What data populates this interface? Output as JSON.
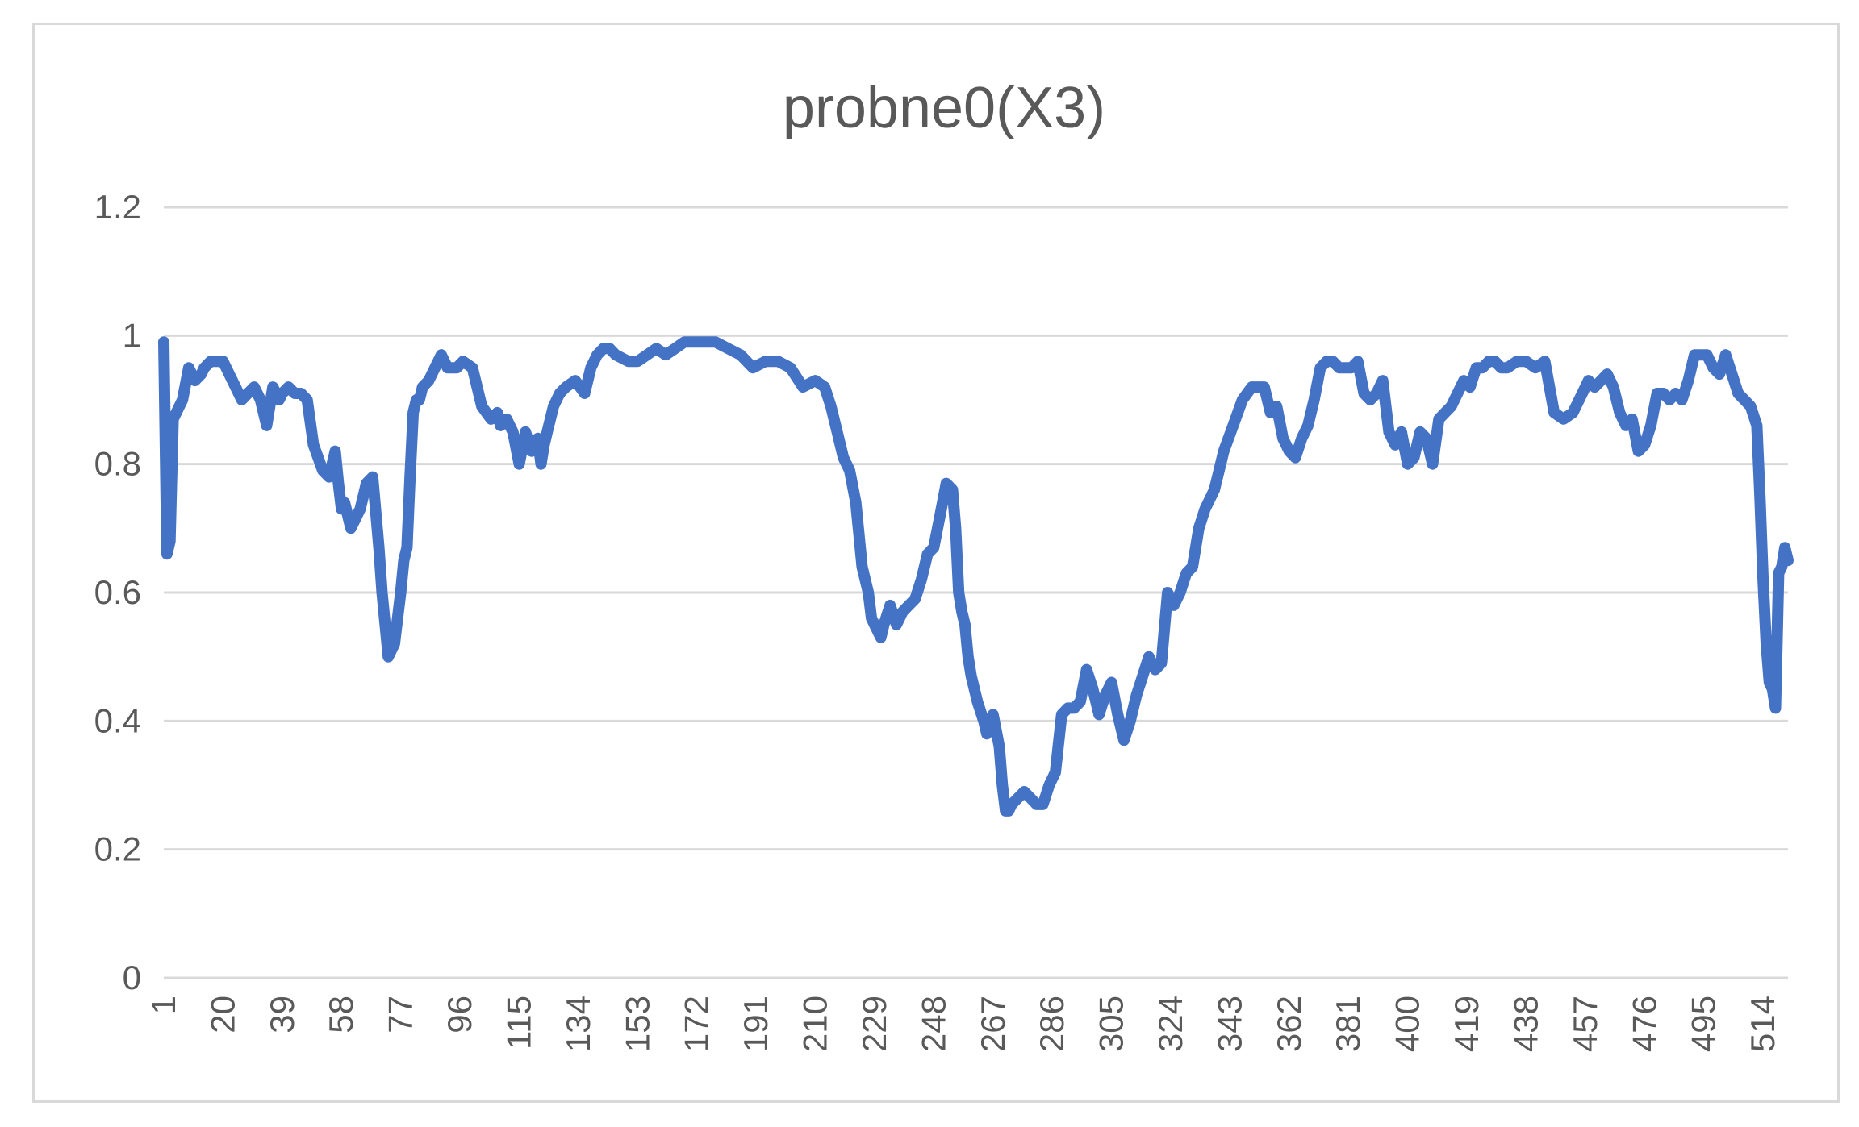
{
  "chart_data": {
    "type": "line",
    "title": "probne0(X3)",
    "xlabel": "",
    "ylabel": "",
    "ylim": [
      0,
      1.2
    ],
    "y_ticks": [
      "0",
      "0.2",
      "0.4",
      "0.6",
      "0.8",
      "1",
      "1.2"
    ],
    "x_tick_labels": [
      "1",
      "20",
      "39",
      "58",
      "77",
      "96",
      "115",
      "134",
      "153",
      "172",
      "191",
      "210",
      "229",
      "248",
      "267",
      "286",
      "305",
      "324",
      "343",
      "362",
      "381",
      "400",
      "419",
      "438",
      "457",
      "476",
      "495",
      "514"
    ],
    "xlim": [
      1,
      522
    ],
    "grid": true,
    "legend": "none",
    "series_color": "#4472c4",
    "series": [
      {
        "x": [
          1,
          2,
          3,
          4,
          5,
          6,
          7,
          9,
          11,
          13,
          14,
          16,
          18,
          20,
          22,
          24,
          26,
          28,
          30,
          32,
          34,
          36,
          38,
          39,
          41,
          43,
          45,
          47,
          49,
          52,
          54,
          56,
          57,
          58,
          59,
          60,
          61,
          62,
          64,
          66,
          68,
          70,
          71,
          73,
          75,
          77,
          78,
          79,
          80,
          81,
          82,
          83,
          84,
          86,
          88,
          89,
          90,
          92,
          95,
          97,
          100,
          103,
          106,
          108,
          109,
          111,
          113,
          115,
          117,
          119,
          121,
          122,
          123,
          124,
          125,
          126,
          128,
          130,
          133,
          136,
          138,
          140,
          142,
          144,
          146,
          150,
          153,
          156,
          159,
          162,
          165,
          168,
          171,
          175,
          178,
          182,
          186,
          190,
          194,
          198,
          202,
          206,
          210,
          213,
          215,
          217,
          219,
          221,
          223,
          225,
          227,
          228,
          229,
          230,
          231,
          232,
          234,
          236,
          238,
          240,
          242,
          244,
          246,
          248,
          250,
          252,
          254,
          255,
          256,
          257,
          258,
          259,
          260,
          262,
          264,
          265,
          267,
          269,
          270,
          271,
          272,
          273,
          275,
          277,
          279,
          281,
          283,
          285,
          287,
          289,
          291,
          293,
          295,
          297,
          299,
          301,
          303,
          305,
          307,
          309,
          311,
          313,
          315,
          317,
          319,
          321,
          323,
          325,
          327,
          329,
          331,
          333,
          335,
          338,
          341,
          344,
          347,
          350,
          352,
          354,
          356,
          358,
          360,
          362,
          364,
          366,
          368,
          370,
          372,
          374,
          376,
          378,
          380,
          382,
          384,
          386,
          388,
          390,
          392,
          394,
          396,
          398,
          400,
          402,
          404,
          406,
          408,
          410,
          412,
          414,
          416,
          418,
          420,
          422,
          424,
          426,
          428,
          430,
          432,
          435,
          438,
          441,
          444,
          447,
          450,
          453,
          456,
          458,
          460,
          462,
          464,
          466,
          468,
          470,
          472,
          474,
          476,
          478,
          480,
          482,
          484,
          486,
          488,
          490,
          492,
          494,
          496,
          498,
          500,
          502,
          504,
          506,
          508,
          510,
          512,
          513,
          514,
          515,
          516,
          517,
          518,
          519,
          520,
          521,
          522
        ],
        "values": [
          0.99,
          0.66,
          0.68,
          0.87,
          0.88,
          0.89,
          0.9,
          0.95,
          0.93,
          0.94,
          0.95,
          0.96,
          0.96,
          0.96,
          0.94,
          0.92,
          0.9,
          0.91,
          0.92,
          0.9,
          0.86,
          0.92,
          0.9,
          0.91,
          0.92,
          0.91,
          0.91,
          0.9,
          0.83,
          0.79,
          0.78,
          0.82,
          0.77,
          0.73,
          0.74,
          0.72,
          0.7,
          0.71,
          0.73,
          0.77,
          0.78,
          0.67,
          0.6,
          0.5,
          0.52,
          0.6,
          0.65,
          0.67,
          0.78,
          0.88,
          0.9,
          0.9,
          0.92,
          0.93,
          0.95,
          0.96,
          0.97,
          0.95,
          0.95,
          0.96,
          0.95,
          0.89,
          0.87,
          0.88,
          0.86,
          0.87,
          0.85,
          0.8,
          0.85,
          0.82,
          0.84,
          0.8,
          0.83,
          0.85,
          0.87,
          0.89,
          0.91,
          0.92,
          0.93,
          0.91,
          0.95,
          0.97,
          0.98,
          0.98,
          0.97,
          0.96,
          0.96,
          0.97,
          0.98,
          0.97,
          0.98,
          0.99,
          0.99,
          0.99,
          0.99,
          0.98,
          0.97,
          0.95,
          0.96,
          0.96,
          0.95,
          0.92,
          0.93,
          0.92,
          0.89,
          0.85,
          0.81,
          0.79,
          0.74,
          0.64,
          0.6,
          0.56,
          0.55,
          0.54,
          0.53,
          0.55,
          0.58,
          0.55,
          0.57,
          0.58,
          0.59,
          0.62,
          0.66,
          0.67,
          0.72,
          0.77,
          0.76,
          0.7,
          0.6,
          0.57,
          0.55,
          0.5,
          0.47,
          0.43,
          0.4,
          0.38,
          0.41,
          0.36,
          0.3,
          0.26,
          0.26,
          0.27,
          0.28,
          0.29,
          0.28,
          0.27,
          0.27,
          0.3,
          0.32,
          0.41,
          0.42,
          0.42,
          0.43,
          0.48,
          0.45,
          0.41,
          0.44,
          0.46,
          0.41,
          0.37,
          0.4,
          0.44,
          0.47,
          0.5,
          0.48,
          0.49,
          0.6,
          0.58,
          0.6,
          0.63,
          0.64,
          0.7,
          0.73,
          0.76,
          0.82,
          0.86,
          0.9,
          0.92,
          0.92,
          0.92,
          0.88,
          0.89,
          0.84,
          0.82,
          0.81,
          0.84,
          0.86,
          0.9,
          0.95,
          0.96,
          0.96,
          0.95,
          0.95,
          0.95,
          0.96,
          0.91,
          0.9,
          0.91,
          0.93,
          0.85,
          0.83,
          0.85,
          0.8,
          0.81,
          0.85,
          0.84,
          0.8,
          0.87,
          0.88,
          0.89,
          0.91,
          0.93,
          0.92,
          0.95,
          0.95,
          0.96,
          0.96,
          0.95,
          0.95,
          0.96,
          0.96,
          0.95,
          0.96,
          0.88,
          0.87,
          0.88,
          0.91,
          0.93,
          0.92,
          0.93,
          0.94,
          0.92,
          0.88,
          0.86,
          0.87,
          0.82,
          0.83,
          0.86,
          0.91,
          0.91,
          0.9,
          0.91,
          0.9,
          0.93,
          0.97,
          0.97,
          0.97,
          0.95,
          0.94,
          0.97,
          0.94,
          0.91,
          0.9,
          0.89,
          0.86,
          0.75,
          0.62,
          0.52,
          0.46,
          0.45,
          0.42,
          0.63,
          0.64,
          0.67,
          0.65
        ]
      }
    ]
  }
}
